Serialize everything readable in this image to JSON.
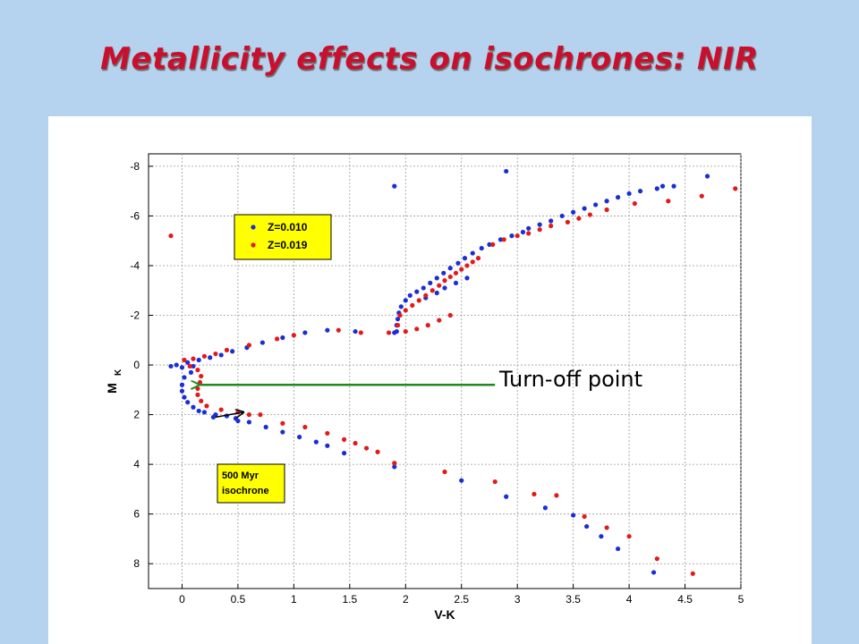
{
  "slide": {
    "title": "Metallicity effects on isochrones: NIR"
  },
  "colors": {
    "background": "#b5d3ee",
    "title": "#c8102e",
    "series_blue": "#1a2ed6",
    "series_red": "#e21a1a",
    "legend_box": "#ffff00",
    "arrow": "#1e8a1e"
  },
  "chart_data": {
    "type": "scatter",
    "xlabel": "V-K",
    "ylabel_main": "M",
    "ylabel_sub": "K",
    "xlim": [
      -0.3,
      5
    ],
    "ylim": [
      -8.5,
      9
    ],
    "y_inverted": true,
    "grid": true,
    "xticks": [
      0,
      0.5,
      1,
      1.5,
      2,
      2.5,
      3,
      3.5,
      4,
      4.5,
      5
    ],
    "xtick_labels": [
      "0",
      "0.5",
      "1",
      "1.5",
      "2",
      "2.5",
      "3",
      "3.5",
      "4",
      "4.5",
      "5"
    ],
    "yticks": [
      -8,
      -6,
      -4,
      -2,
      0,
      2,
      4,
      6,
      8
    ],
    "ytick_labels": [
      "-8",
      "-6",
      "-4",
      "-2",
      "0",
      "2",
      "4",
      "6",
      "8"
    ],
    "legend_position": "upper-left",
    "series": [
      {
        "name": "Z=0.010",
        "color": "#1a2ed6",
        "points": [
          [
            1.9,
            -7.2
          ],
          [
            2.9,
            -7.8
          ],
          [
            4.7,
            -7.6
          ],
          [
            4.3,
            -7.2
          ],
          [
            4.4,
            -7.2
          ],
          [
            4.25,
            -7.1
          ],
          [
            4.1,
            -7.0
          ],
          [
            4.0,
            -6.9
          ],
          [
            3.9,
            -6.75
          ],
          [
            3.8,
            -6.6
          ],
          [
            3.7,
            -6.45
          ],
          [
            3.6,
            -6.3
          ],
          [
            3.5,
            -6.15
          ],
          [
            3.4,
            -6.0
          ],
          [
            3.3,
            -5.8
          ],
          [
            3.2,
            -5.65
          ],
          [
            3.1,
            -5.5
          ],
          [
            3.05,
            -5.35
          ],
          [
            2.95,
            -5.2
          ],
          [
            2.85,
            -5.05
          ],
          [
            2.75,
            -4.85
          ],
          [
            2.68,
            -4.7
          ],
          [
            2.6,
            -4.5
          ],
          [
            2.53,
            -4.3
          ],
          [
            2.47,
            -4.1
          ],
          [
            2.4,
            -3.9
          ],
          [
            2.34,
            -3.7
          ],
          [
            2.28,
            -3.5
          ],
          [
            2.22,
            -3.3
          ],
          [
            2.16,
            -3.1
          ],
          [
            2.1,
            -2.95
          ],
          [
            2.04,
            -2.8
          ],
          [
            2.0,
            -2.6
          ],
          [
            1.96,
            -2.35
          ],
          [
            1.94,
            -2.1
          ],
          [
            1.93,
            -1.85
          ],
          [
            1.92,
            -1.6
          ],
          [
            1.92,
            -1.35
          ],
          [
            2.55,
            -3.5
          ],
          [
            2.45,
            -3.3
          ],
          [
            2.35,
            -3.1
          ],
          [
            2.28,
            -2.9
          ],
          [
            2.18,
            -2.7
          ],
          [
            1.9,
            -1.3
          ],
          [
            1.55,
            -1.35
          ],
          [
            1.3,
            -1.4
          ],
          [
            1.1,
            -1.3
          ],
          [
            0.9,
            -1.1
          ],
          [
            0.72,
            -0.9
          ],
          [
            0.58,
            -0.7
          ],
          [
            0.45,
            -0.55
          ],
          [
            0.35,
            -0.4
          ],
          [
            0.25,
            -0.3
          ],
          [
            0.15,
            -0.2
          ],
          [
            0.05,
            -0.1
          ],
          [
            -0.05,
            0.0
          ],
          [
            -0.1,
            0.05
          ],
          [
            0.0,
            0.1
          ],
          [
            0.1,
            0.05
          ],
          [
            0.08,
            0.3
          ],
          [
            0.02,
            0.5
          ],
          [
            0.0,
            0.8
          ],
          [
            0.0,
            1.05
          ],
          [
            0.02,
            1.3
          ],
          [
            0.05,
            1.5
          ],
          [
            0.1,
            1.7
          ],
          [
            0.15,
            1.85
          ],
          [
            0.2,
            1.9
          ],
          [
            0.3,
            2.0
          ],
          [
            0.4,
            2.05
          ],
          [
            0.48,
            2.15
          ],
          [
            0.5,
            2.25
          ],
          [
            0.28,
            2.1
          ],
          [
            0.6,
            2.3
          ],
          [
            0.75,
            2.5
          ],
          [
            0.9,
            2.7
          ],
          [
            1.05,
            2.9
          ],
          [
            1.2,
            3.1
          ],
          [
            1.3,
            3.25
          ],
          [
            1.45,
            3.55
          ],
          [
            1.9,
            4.1
          ],
          [
            2.5,
            4.65
          ],
          [
            2.9,
            5.3
          ],
          [
            3.25,
            5.75
          ],
          [
            3.5,
            6.05
          ],
          [
            3.62,
            6.5
          ],
          [
            3.75,
            6.9
          ],
          [
            3.9,
            7.4
          ],
          [
            4.22,
            8.35
          ]
        ]
      },
      {
        "name": "Z=0.019",
        "color": "#e21a1a",
        "points": [
          [
            -0.1,
            -5.2
          ],
          [
            4.95,
            -7.1
          ],
          [
            4.65,
            -6.8
          ],
          [
            4.35,
            -6.6
          ],
          [
            4.05,
            -6.5
          ],
          [
            3.8,
            -6.25
          ],
          [
            3.65,
            -6.05
          ],
          [
            3.55,
            -5.9
          ],
          [
            3.45,
            -5.75
          ],
          [
            3.3,
            -5.6
          ],
          [
            3.2,
            -5.45
          ],
          [
            3.1,
            -5.3
          ],
          [
            3.0,
            -5.2
          ],
          [
            2.88,
            -5.05
          ],
          [
            2.78,
            -4.85
          ],
          [
            2.65,
            -4.3
          ],
          [
            2.6,
            -4.15
          ],
          [
            2.55,
            -4.0
          ],
          [
            2.5,
            -3.85
          ],
          [
            2.45,
            -3.7
          ],
          [
            2.4,
            -3.55
          ],
          [
            2.35,
            -3.4
          ],
          [
            2.3,
            -3.2
          ],
          [
            2.24,
            -3.0
          ],
          [
            2.18,
            -2.8
          ],
          [
            2.12,
            -2.6
          ],
          [
            2.06,
            -2.4
          ],
          [
            2.0,
            -2.2
          ],
          [
            1.95,
            -2.0
          ],
          [
            1.93,
            -1.6
          ],
          [
            2.4,
            -2.0
          ],
          [
            2.3,
            -1.8
          ],
          [
            2.2,
            -1.6
          ],
          [
            2.1,
            -1.45
          ],
          [
            2.0,
            -1.35
          ],
          [
            1.85,
            -1.3
          ],
          [
            1.6,
            -1.3
          ],
          [
            1.4,
            -1.4
          ],
          [
            1.0,
            -1.2
          ],
          [
            0.85,
            -1.05
          ],
          [
            0.6,
            -0.8
          ],
          [
            0.4,
            -0.6
          ],
          [
            0.3,
            -0.45
          ],
          [
            0.2,
            -0.35
          ],
          [
            0.1,
            -0.25
          ],
          [
            0.02,
            -0.2
          ],
          [
            0.07,
            0.05
          ],
          [
            0.14,
            0.2
          ],
          [
            0.17,
            0.45
          ],
          [
            0.16,
            0.7
          ],
          [
            0.14,
            0.95
          ],
          [
            0.14,
            1.2
          ],
          [
            0.17,
            1.45
          ],
          [
            0.22,
            1.65
          ],
          [
            0.35,
            1.8
          ],
          [
            0.5,
            1.9
          ],
          [
            0.6,
            2.0
          ],
          [
            0.7,
            2.0
          ],
          [
            0.9,
            2.35
          ],
          [
            1.1,
            2.5
          ],
          [
            1.3,
            2.75
          ],
          [
            1.45,
            3.0
          ],
          [
            1.55,
            3.15
          ],
          [
            1.65,
            3.35
          ],
          [
            1.75,
            3.5
          ],
          [
            1.9,
            3.95
          ],
          [
            2.35,
            4.3
          ],
          [
            2.8,
            4.7
          ],
          [
            3.15,
            5.2
          ],
          [
            3.35,
            5.25
          ],
          [
            3.6,
            6.1
          ],
          [
            3.8,
            6.55
          ],
          [
            4.0,
            6.9
          ],
          [
            4.25,
            7.8
          ],
          [
            4.57,
            8.4
          ]
        ]
      }
    ],
    "annotation_box": {
      "line1": "500 Myr",
      "line2": "isochrone"
    },
    "callout": {
      "text": "Turn-off point",
      "arrow_from": [
        2.8,
        0.8
      ],
      "arrow_to": [
        0.15,
        0.8
      ]
    },
    "small_arrow": {
      "from": [
        0.3,
        2.1
      ],
      "to": [
        0.55,
        1.9
      ]
    }
  }
}
